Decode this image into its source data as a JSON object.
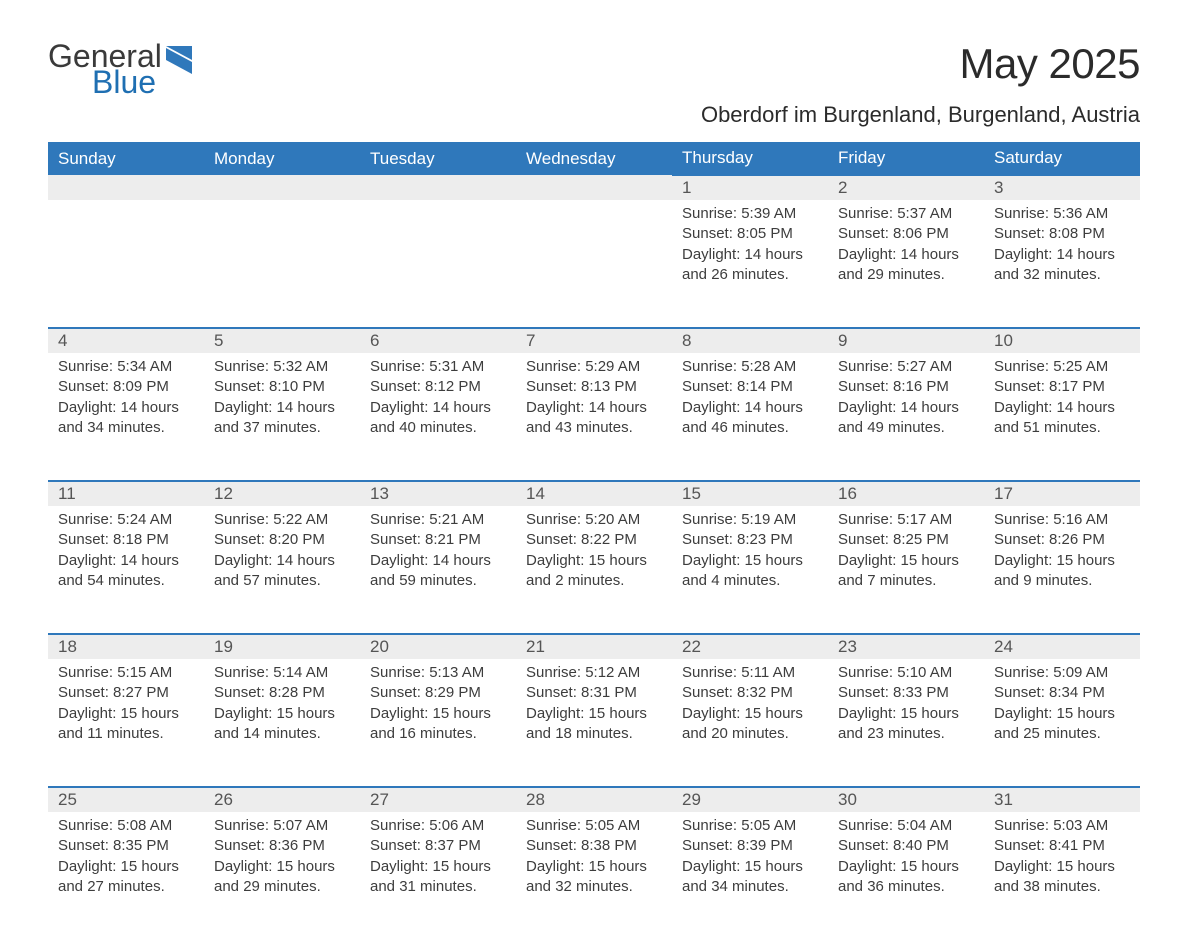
{
  "logo": {
    "general": "General",
    "blue": "Blue"
  },
  "title": "May 2025",
  "location": "Oberdorf im Burgenland, Burgenland, Austria",
  "colors": {
    "header_bg": "#2f78bb",
    "header_text": "#ffffff",
    "daynum_bg": "#ededed",
    "daynum_border": "#2f78bb",
    "body_text": "#3d3d3d",
    "logo_blue": "#1f6fb2"
  },
  "typography": {
    "title_fontsize": 42,
    "location_fontsize": 22,
    "header_fontsize": 17,
    "body_fontsize": 15
  },
  "day_headers": [
    "Sunday",
    "Monday",
    "Tuesday",
    "Wednesday",
    "Thursday",
    "Friday",
    "Saturday"
  ],
  "weeks": [
    {
      "days": [
        {
          "empty": true
        },
        {
          "empty": true
        },
        {
          "empty": true
        },
        {
          "empty": true
        },
        {
          "num": "1",
          "sunrise": "Sunrise: 5:39 AM",
          "sunset": "Sunset: 8:05 PM",
          "day1": "Daylight: 14 hours",
          "day2": "and 26 minutes."
        },
        {
          "num": "2",
          "sunrise": "Sunrise: 5:37 AM",
          "sunset": "Sunset: 8:06 PM",
          "day1": "Daylight: 14 hours",
          "day2": "and 29 minutes."
        },
        {
          "num": "3",
          "sunrise": "Sunrise: 5:36 AM",
          "sunset": "Sunset: 8:08 PM",
          "day1": "Daylight: 14 hours",
          "day2": "and 32 minutes."
        }
      ]
    },
    {
      "days": [
        {
          "num": "4",
          "sunrise": "Sunrise: 5:34 AM",
          "sunset": "Sunset: 8:09 PM",
          "day1": "Daylight: 14 hours",
          "day2": "and 34 minutes."
        },
        {
          "num": "5",
          "sunrise": "Sunrise: 5:32 AM",
          "sunset": "Sunset: 8:10 PM",
          "day1": "Daylight: 14 hours",
          "day2": "and 37 minutes."
        },
        {
          "num": "6",
          "sunrise": "Sunrise: 5:31 AM",
          "sunset": "Sunset: 8:12 PM",
          "day1": "Daylight: 14 hours",
          "day2": "and 40 minutes."
        },
        {
          "num": "7",
          "sunrise": "Sunrise: 5:29 AM",
          "sunset": "Sunset: 8:13 PM",
          "day1": "Daylight: 14 hours",
          "day2": "and 43 minutes."
        },
        {
          "num": "8",
          "sunrise": "Sunrise: 5:28 AM",
          "sunset": "Sunset: 8:14 PM",
          "day1": "Daylight: 14 hours",
          "day2": "and 46 minutes."
        },
        {
          "num": "9",
          "sunrise": "Sunrise: 5:27 AM",
          "sunset": "Sunset: 8:16 PM",
          "day1": "Daylight: 14 hours",
          "day2": "and 49 minutes."
        },
        {
          "num": "10",
          "sunrise": "Sunrise: 5:25 AM",
          "sunset": "Sunset: 8:17 PM",
          "day1": "Daylight: 14 hours",
          "day2": "and 51 minutes."
        }
      ]
    },
    {
      "days": [
        {
          "num": "11",
          "sunrise": "Sunrise: 5:24 AM",
          "sunset": "Sunset: 8:18 PM",
          "day1": "Daylight: 14 hours",
          "day2": "and 54 minutes."
        },
        {
          "num": "12",
          "sunrise": "Sunrise: 5:22 AM",
          "sunset": "Sunset: 8:20 PM",
          "day1": "Daylight: 14 hours",
          "day2": "and 57 minutes."
        },
        {
          "num": "13",
          "sunrise": "Sunrise: 5:21 AM",
          "sunset": "Sunset: 8:21 PM",
          "day1": "Daylight: 14 hours",
          "day2": "and 59 minutes."
        },
        {
          "num": "14",
          "sunrise": "Sunrise: 5:20 AM",
          "sunset": "Sunset: 8:22 PM",
          "day1": "Daylight: 15 hours",
          "day2": "and 2 minutes."
        },
        {
          "num": "15",
          "sunrise": "Sunrise: 5:19 AM",
          "sunset": "Sunset: 8:23 PM",
          "day1": "Daylight: 15 hours",
          "day2": "and 4 minutes."
        },
        {
          "num": "16",
          "sunrise": "Sunrise: 5:17 AM",
          "sunset": "Sunset: 8:25 PM",
          "day1": "Daylight: 15 hours",
          "day2": "and 7 minutes."
        },
        {
          "num": "17",
          "sunrise": "Sunrise: 5:16 AM",
          "sunset": "Sunset: 8:26 PM",
          "day1": "Daylight: 15 hours",
          "day2": "and 9 minutes."
        }
      ]
    },
    {
      "days": [
        {
          "num": "18",
          "sunrise": "Sunrise: 5:15 AM",
          "sunset": "Sunset: 8:27 PM",
          "day1": "Daylight: 15 hours",
          "day2": "and 11 minutes."
        },
        {
          "num": "19",
          "sunrise": "Sunrise: 5:14 AM",
          "sunset": "Sunset: 8:28 PM",
          "day1": "Daylight: 15 hours",
          "day2": "and 14 minutes."
        },
        {
          "num": "20",
          "sunrise": "Sunrise: 5:13 AM",
          "sunset": "Sunset: 8:29 PM",
          "day1": "Daylight: 15 hours",
          "day2": "and 16 minutes."
        },
        {
          "num": "21",
          "sunrise": "Sunrise: 5:12 AM",
          "sunset": "Sunset: 8:31 PM",
          "day1": "Daylight: 15 hours",
          "day2": "and 18 minutes."
        },
        {
          "num": "22",
          "sunrise": "Sunrise: 5:11 AM",
          "sunset": "Sunset: 8:32 PM",
          "day1": "Daylight: 15 hours",
          "day2": "and 20 minutes."
        },
        {
          "num": "23",
          "sunrise": "Sunrise: 5:10 AM",
          "sunset": "Sunset: 8:33 PM",
          "day1": "Daylight: 15 hours",
          "day2": "and 23 minutes."
        },
        {
          "num": "24",
          "sunrise": "Sunrise: 5:09 AM",
          "sunset": "Sunset: 8:34 PM",
          "day1": "Daylight: 15 hours",
          "day2": "and 25 minutes."
        }
      ]
    },
    {
      "days": [
        {
          "num": "25",
          "sunrise": "Sunrise: 5:08 AM",
          "sunset": "Sunset: 8:35 PM",
          "day1": "Daylight: 15 hours",
          "day2": "and 27 minutes."
        },
        {
          "num": "26",
          "sunrise": "Sunrise: 5:07 AM",
          "sunset": "Sunset: 8:36 PM",
          "day1": "Daylight: 15 hours",
          "day2": "and 29 minutes."
        },
        {
          "num": "27",
          "sunrise": "Sunrise: 5:06 AM",
          "sunset": "Sunset: 8:37 PM",
          "day1": "Daylight: 15 hours",
          "day2": "and 31 minutes."
        },
        {
          "num": "28",
          "sunrise": "Sunrise: 5:05 AM",
          "sunset": "Sunset: 8:38 PM",
          "day1": "Daylight: 15 hours",
          "day2": "and 32 minutes."
        },
        {
          "num": "29",
          "sunrise": "Sunrise: 5:05 AM",
          "sunset": "Sunset: 8:39 PM",
          "day1": "Daylight: 15 hours",
          "day2": "and 34 minutes."
        },
        {
          "num": "30",
          "sunrise": "Sunrise: 5:04 AM",
          "sunset": "Sunset: 8:40 PM",
          "day1": "Daylight: 15 hours",
          "day2": "and 36 minutes."
        },
        {
          "num": "31",
          "sunrise": "Sunrise: 5:03 AM",
          "sunset": "Sunset: 8:41 PM",
          "day1": "Daylight: 15 hours",
          "day2": "and 38 minutes."
        }
      ]
    }
  ]
}
